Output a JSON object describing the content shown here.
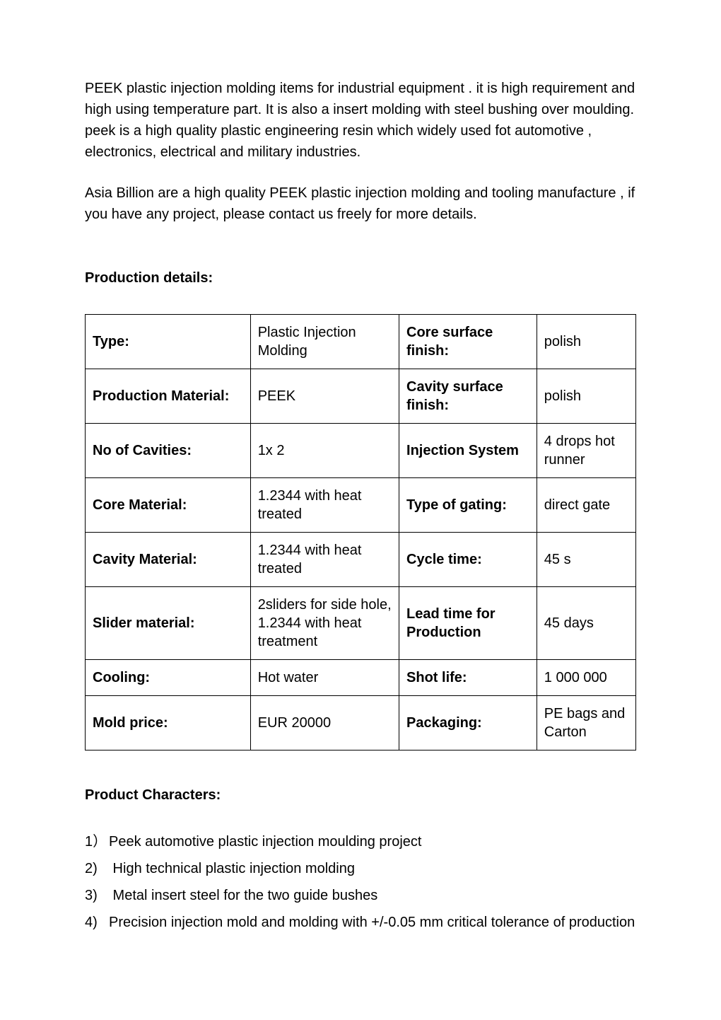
{
  "intro": {
    "p1": "PEEK plastic injection molding items for industrial equipment . it is high requirement and high using temperature part.   It is also a insert molding with steel bushing over moulding. peek is a high quality plastic engineering resin which widely used fot automotive , electronics, electrical and military industries.",
    "p2": "Asia Billion are a high quality PEEK plastic injection molding and tooling manufacture , if you have any project, please contact us freely for more details."
  },
  "headings": {
    "production_details": "Production details:",
    "product_characters": "Product Characters:"
  },
  "table": {
    "rows": [
      {
        "k1": "Type:",
        "v1": "Plastic Injection Molding",
        "k2": "Core   surface finish:",
        "v2": "polish"
      },
      {
        "k1": "Production   Material:",
        "v1": "PEEK",
        "k2": "Cavity   surface finish:",
        "v2": "polish"
      },
      {
        "k1": "No of   Cavities:",
        "v1": "1x 2",
        "k2": "Injection   System",
        "v2": "4 drops hot   runner"
      },
      {
        "k1": "Core   Material:",
        "v1": "1.2344 with heat treated",
        "k2": "Type of   gating:",
        "v2": "direct   gate"
      },
      {
        "k1": "Cavity   Material:",
        "v1": "1.2344 with heat treated",
        "k2": "Cycle time:",
        "v2": "45 s"
      },
      {
        "k1": "Slider   material:",
        "v1": "2sliders for side hole, 1.2344 with heat treatment",
        "k2": "Lead time   for Production",
        "v2": "45 days"
      },
      {
        "k1": "Cooling:",
        "v1": "Hot water",
        "k2": "Shot life:",
        "v2": "1 000 000"
      },
      {
        "k1": "Mold price:",
        "v1": "EUR 20000",
        "k2": "Packaging:",
        "v2": "PE bags and Carton"
      }
    ]
  },
  "characters": {
    "items": [
      {
        "num": "1）",
        "text": "Peek automotive plastic injection moulding project"
      },
      {
        "num": "2)",
        "text": " High technical plastic injection molding"
      },
      {
        "num": "3)",
        "text": "  Metal insert steel for the two guide bushes"
      },
      {
        "num": "4)",
        "text": "Precision injection mold and molding with +/-0.05 mm critical tolerance of production"
      }
    ]
  }
}
